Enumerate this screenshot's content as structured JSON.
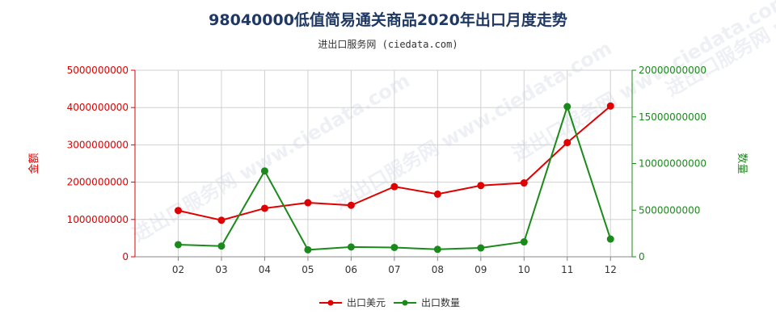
{
  "title": "98040000低值简易通关商品2020年出口月度走势",
  "subtitle": "进出口服务网 (ciedata.com)",
  "watermark": "进出口服务网 www.ciedata.com",
  "colors": {
    "left_axis": "#e00000",
    "right_axis": "#1a8a1a",
    "grid": "#d0d0d0",
    "axis": "#888888"
  },
  "chart_data": {
    "type": "line",
    "categories": [
      "02",
      "03",
      "04",
      "05",
      "06",
      "07",
      "08",
      "09",
      "10",
      "11",
      "12"
    ],
    "ylabel_left": "金额",
    "ylabel_right": "数量",
    "ylim_left": [
      0,
      5000000000
    ],
    "ylim_right": [
      0,
      20000000000
    ],
    "yticks_left": [
      "0",
      "1000000000",
      "2000000000",
      "3000000000",
      "4000000000",
      "5000000000"
    ],
    "yticks_right": [
      "0",
      "5000000000",
      "10000000000",
      "15000000000",
      "20000000000"
    ],
    "grid": true,
    "legend_position": "bottom",
    "series": [
      {
        "name": "出口美元",
        "axis": "left",
        "color": "#e00000",
        "values": [
          1240000000,
          980000000,
          1300000000,
          1450000000,
          1380000000,
          1880000000,
          1680000000,
          1910000000,
          1980000000,
          3060000000,
          4040000000
        ]
      },
      {
        "name": "出口数量",
        "axis": "right",
        "color": "#1a8a1a",
        "values": [
          1300000000,
          1150000000,
          9200000000,
          750000000,
          1050000000,
          1000000000,
          800000000,
          950000000,
          1600000000,
          16100000000,
          1900000000
        ]
      }
    ]
  }
}
